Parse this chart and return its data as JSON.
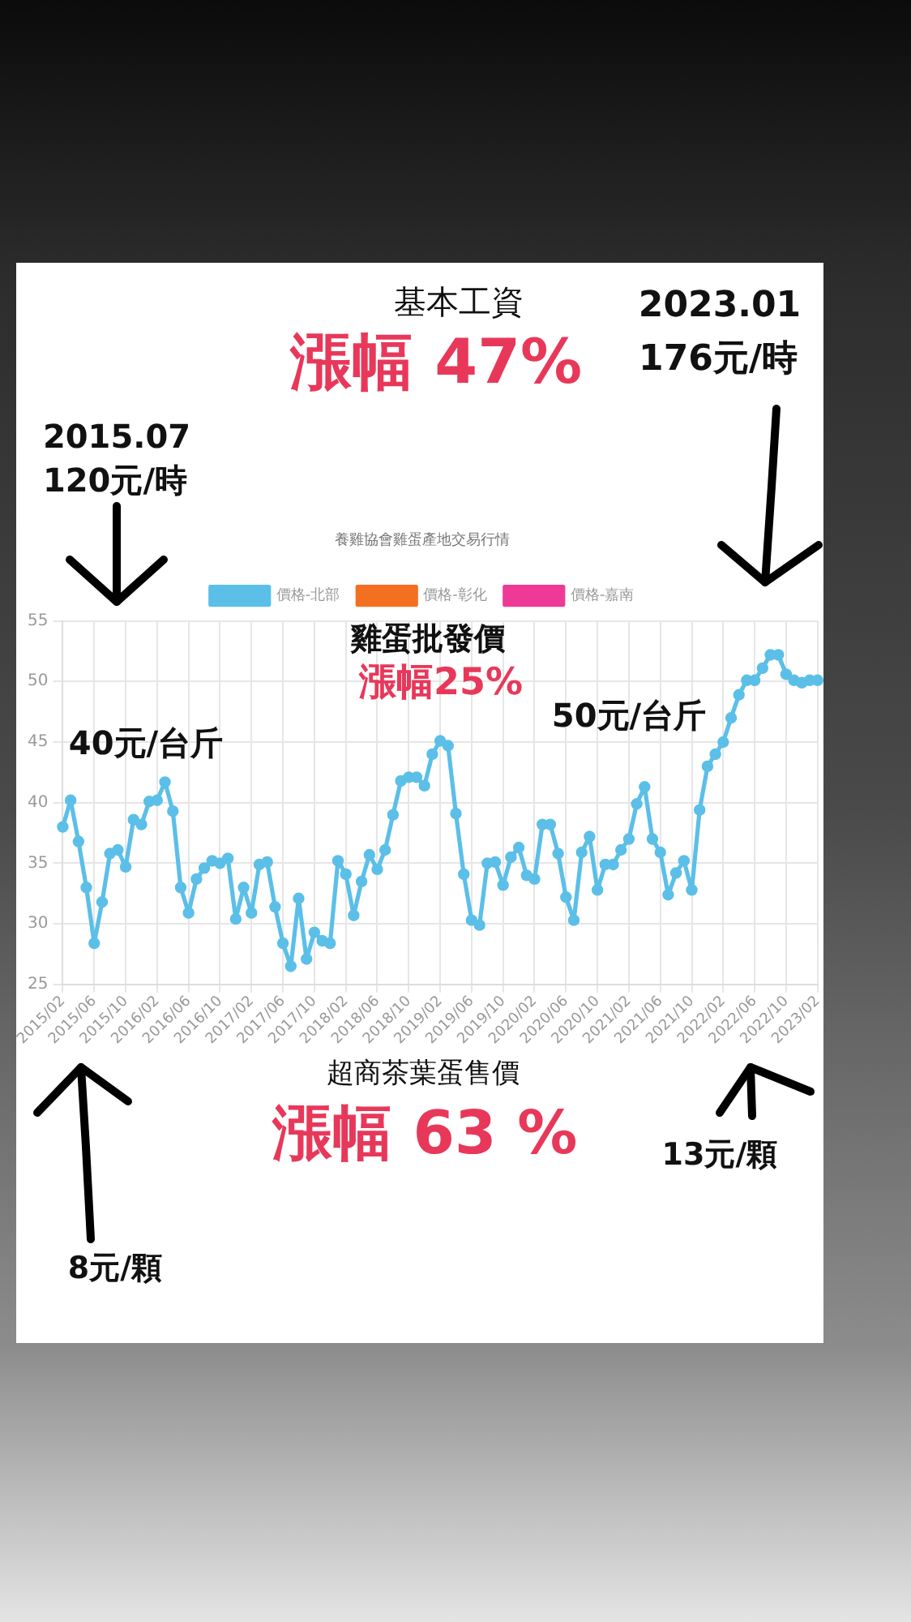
{
  "chart_data": {
    "type": "line",
    "title": "養雞協會雞蛋產地交易行情",
    "categories": [
      "2015/02",
      null,
      null,
      null,
      "2015/06",
      null,
      null,
      null,
      "2015/10",
      null,
      null,
      null,
      "2016/02",
      null,
      null,
      null,
      "2016/06",
      null,
      null,
      null,
      "2016/10",
      null,
      null,
      null,
      "2017/02",
      null,
      null,
      null,
      "2017/06",
      null,
      null,
      null,
      "2017/10",
      null,
      null,
      null,
      "2018/02",
      null,
      null,
      null,
      "2018/06",
      null,
      null,
      null,
      "2018/10",
      null,
      null,
      null,
      "2019/02",
      null,
      null,
      null,
      "2019/06",
      null,
      null,
      null,
      "2019/10",
      null,
      null,
      null,
      "2020/02",
      null,
      null,
      null,
      "2020/06",
      null,
      null,
      null,
      "2020/10",
      null,
      null,
      null,
      "2021/02",
      null,
      null,
      null,
      "2021/06",
      null,
      null,
      null,
      "2021/10",
      null,
      null,
      null,
      "2022/02",
      null,
      null,
      null,
      "2022/06",
      null,
      null,
      null,
      "2022/10",
      null,
      null,
      null,
      "2023/02"
    ],
    "series": [
      {
        "name": "價格-北部",
        "color": "#5bbfe8",
        "values": [
          38.0,
          40.2,
          36.8,
          33.0,
          28.4,
          31.8,
          35.8,
          36.1,
          34.7,
          38.6,
          38.2,
          40.1,
          40.2,
          41.7,
          39.3,
          33.0,
          30.9,
          33.7,
          34.6,
          35.2,
          35.0,
          35.4,
          30.4,
          33.0,
          30.9,
          34.9,
          35.1,
          31.4,
          28.4,
          26.5,
          32.1,
          27.1,
          29.3,
          28.6,
          28.4,
          35.2,
          34.1,
          30.7,
          33.5,
          35.7,
          34.5,
          36.1,
          39.0,
          41.8,
          42.1,
          42.1,
          41.4,
          44.0,
          45.1,
          44.7,
          39.1,
          34.1,
          30.3,
          29.9,
          35.0,
          35.1,
          33.2,
          35.5,
          36.3,
          34.0,
          33.7,
          38.2,
          38.2,
          35.8,
          32.2,
          30.3,
          35.9,
          37.2,
          32.8,
          34.9,
          34.9,
          36.1,
          37.0,
          39.9,
          41.3,
          37.0,
          35.9,
          32.4,
          34.2,
          35.2,
          32.8,
          39.4,
          43.0,
          44.0,
          45.0,
          47.0,
          48.9,
          50.1,
          50.1,
          51.1,
          52.2,
          52.2,
          50.6,
          50.1,
          49.9,
          50.1,
          50.1
        ]
      },
      {
        "name": "價格-彰化",
        "color": "#f37021",
        "values": [
          null,
          null,
          null,
          null,
          null,
          null,
          null,
          null,
          null,
          null,
          null,
          null,
          null,
          null,
          null,
          null,
          null,
          null,
          null,
          null,
          null,
          null,
          null,
          null,
          null,
          null,
          null,
          null,
          null,
          null,
          null,
          null,
          null,
          null,
          null,
          null,
          null,
          null,
          null,
          null,
          null,
          null,
          null,
          null,
          null,
          null,
          null,
          null,
          null,
          null,
          null,
          null,
          null,
          null,
          null,
          null,
          null,
          null,
          null,
          null,
          null,
          null,
          null,
          null,
          null,
          null,
          null,
          null,
          null,
          null,
          null,
          null,
          null,
          null,
          null,
          null,
          null,
          null,
          null,
          null,
          null,
          null,
          null,
          null,
          null,
          null,
          null,
          null,
          null,
          null,
          null,
          null,
          null,
          null,
          null,
          null,
          null
        ]
      },
      {
        "name": "價格-嘉南",
        "color": "#ee3a96",
        "values": [
          null,
          null,
          null,
          null,
          null,
          null,
          null,
          null,
          null,
          null,
          null,
          null,
          null,
          null,
          null,
          null,
          null,
          null,
          null,
          null,
          null,
          null,
          null,
          null,
          null,
          null,
          null,
          null,
          null,
          null,
          null,
          null,
          null,
          null,
          null,
          null,
          null,
          null,
          null,
          null,
          null,
          null,
          null,
          null,
          null,
          null,
          null,
          null,
          null,
          null,
          null,
          null,
          null,
          null,
          null,
          null,
          null,
          null,
          null,
          null,
          null,
          null,
          null,
          null,
          null,
          null,
          null,
          null,
          null,
          null,
          null,
          null,
          null,
          null,
          null,
          null,
          null,
          null,
          null,
          null,
          null,
          null,
          null,
          null,
          null,
          null,
          null,
          null,
          null,
          null,
          null,
          null,
          null,
          null,
          null,
          null,
          null
        ]
      }
    ],
    "ylim": [
      25,
      55
    ],
    "yticks": [
      25,
      30,
      35,
      40,
      45,
      50,
      55
    ],
    "grid": true,
    "legend": "top",
    "marker": "circle",
    "line_style": "solid",
    "annotations": [
      "基本工資",
      "漲幅 47%",
      "2023.01",
      "176元/時",
      "2015.07",
      "120元/時",
      "雞蛋批發價",
      "漲幅25%",
      "40元/台斤",
      "50元/台斤",
      "超商茶葉蛋售價",
      "漲幅 63 %",
      "13元/顆",
      "8元/顆"
    ]
  }
}
